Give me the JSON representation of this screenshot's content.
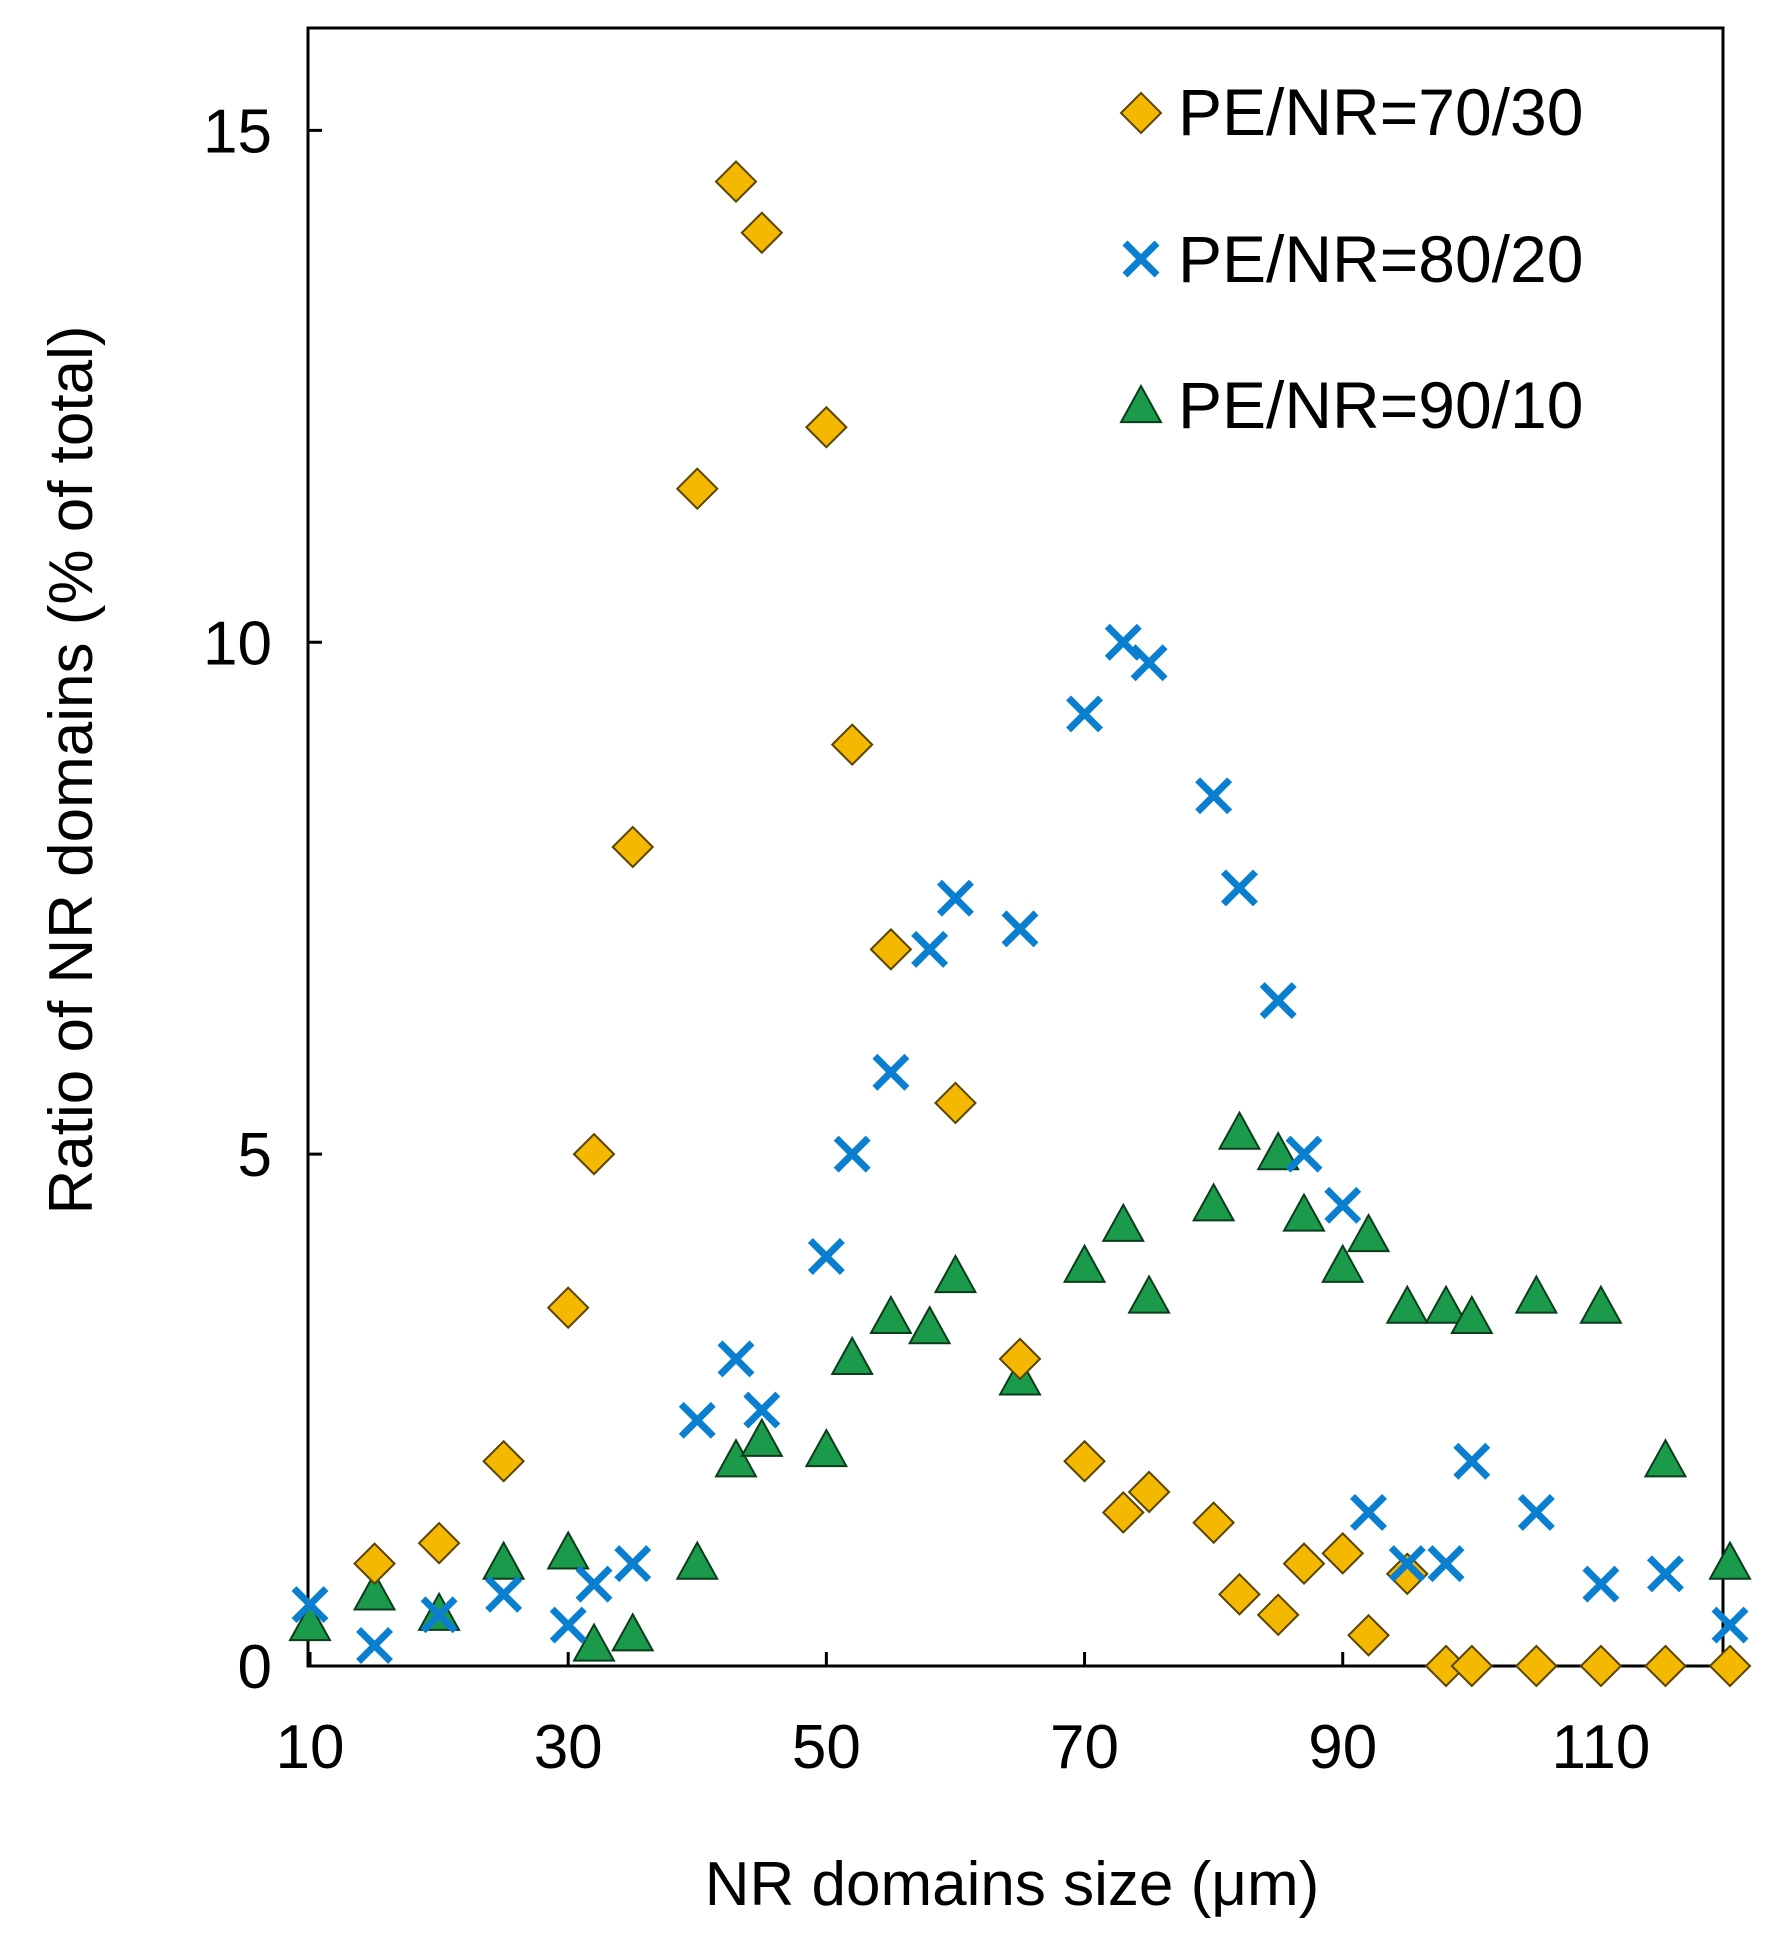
{
  "chart_data": {
    "type": "scatter",
    "title": "",
    "xlabel": "NR domains size (μm)",
    "ylabel": "Ratio of NR domains (% of total)",
    "xlim": [
      10,
      120
    ],
    "ylim": [
      0,
      16
    ],
    "xticks": [
      10,
      30,
      50,
      70,
      90,
      110
    ],
    "yticks": [
      0,
      5,
      10,
      15
    ],
    "grid": false,
    "legend_position": "top-right",
    "series": [
      {
        "name": "PE/NR=70/30",
        "marker": "diamond",
        "color": "#F5B800",
        "points": [
          [
            15,
            1.0
          ],
          [
            20,
            1.2
          ],
          [
            25,
            2.0
          ],
          [
            30,
            3.5
          ],
          [
            32,
            5.0
          ],
          [
            35,
            8.0
          ],
          [
            40,
            11.5
          ],
          [
            43,
            14.5
          ],
          [
            45,
            14.0
          ],
          [
            50,
            12.1
          ],
          [
            52,
            9.0
          ],
          [
            55,
            7.0
          ],
          [
            60,
            5.5
          ],
          [
            65,
            3.0
          ],
          [
            70,
            2.0
          ],
          [
            73,
            1.5
          ],
          [
            75,
            1.7
          ],
          [
            80,
            1.4
          ],
          [
            82,
            0.7
          ],
          [
            85,
            0.5
          ],
          [
            87,
            1.0
          ],
          [
            90,
            1.1
          ],
          [
            92,
            0.3
          ],
          [
            95,
            0.9
          ],
          [
            98,
            0.0
          ],
          [
            100,
            0.0
          ],
          [
            105,
            0.0
          ],
          [
            110,
            0.0
          ],
          [
            115,
            0.0
          ],
          [
            120,
            0.0
          ]
        ]
      },
      {
        "name": "PE/NR=80/20",
        "marker": "x",
        "color": "#0A7FD0",
        "points": [
          [
            10,
            0.6
          ],
          [
            15,
            0.2
          ],
          [
            20,
            0.5
          ],
          [
            25,
            0.7
          ],
          [
            30,
            0.4
          ],
          [
            32,
            0.8
          ],
          [
            35,
            1.0
          ],
          [
            40,
            2.4
          ],
          [
            43,
            3.0
          ],
          [
            45,
            2.5
          ],
          [
            50,
            4.0
          ],
          [
            52,
            5.0
          ],
          [
            55,
            5.8
          ],
          [
            58,
            7.0
          ],
          [
            60,
            7.5
          ],
          [
            65,
            7.2
          ],
          [
            70,
            9.3
          ],
          [
            73,
            10.0
          ],
          [
            75,
            9.8
          ],
          [
            80,
            8.5
          ],
          [
            82,
            7.6
          ],
          [
            85,
            6.5
          ],
          [
            87,
            5.0
          ],
          [
            90,
            4.5
          ],
          [
            92,
            1.5
          ],
          [
            95,
            1.0
          ],
          [
            98,
            1.0
          ],
          [
            100,
            2.0
          ],
          [
            105,
            1.5
          ],
          [
            110,
            0.8
          ],
          [
            115,
            0.9
          ],
          [
            120,
            0.4
          ]
        ]
      },
      {
        "name": "PE/NR=90/10",
        "marker": "triangle",
        "color": "#1A9A4A",
        "points": [
          [
            10,
            0.4
          ],
          [
            15,
            0.7
          ],
          [
            20,
            0.5
          ],
          [
            25,
            1.0
          ],
          [
            30,
            1.1
          ],
          [
            32,
            0.2
          ],
          [
            35,
            0.3
          ],
          [
            40,
            1.0
          ],
          [
            43,
            2.0
          ],
          [
            45,
            2.2
          ],
          [
            50,
            2.1
          ],
          [
            52,
            3.0
          ],
          [
            55,
            3.4
          ],
          [
            58,
            3.3
          ],
          [
            60,
            3.8
          ],
          [
            65,
            2.8
          ],
          [
            70,
            3.9
          ],
          [
            73,
            4.3
          ],
          [
            75,
            3.6
          ],
          [
            80,
            4.5
          ],
          [
            82,
            5.2
          ],
          [
            85,
            5.0
          ],
          [
            87,
            4.4
          ],
          [
            90,
            3.9
          ],
          [
            92,
            4.2
          ],
          [
            95,
            3.5
          ],
          [
            98,
            3.5
          ],
          [
            100,
            3.4
          ],
          [
            105,
            3.6
          ],
          [
            110,
            3.5
          ],
          [
            115,
            2.0
          ],
          [
            120,
            1.0
          ]
        ]
      }
    ]
  }
}
